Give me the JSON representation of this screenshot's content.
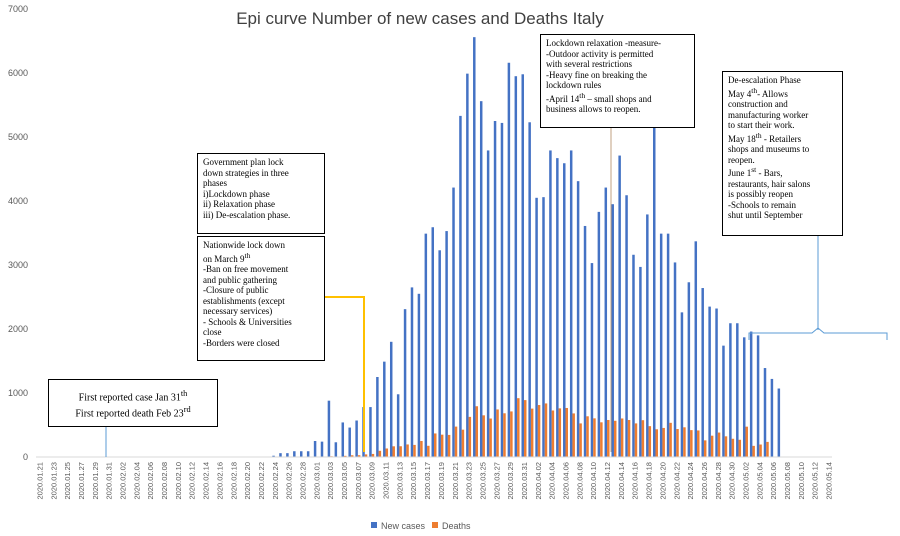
{
  "chart_data": {
    "type": "bar",
    "title": "Epi curve Number of new cases and Deaths Italy",
    "ylim": [
      0,
      7000
    ],
    "y_ticks": [
      "0",
      "1000",
      "2000",
      "3000",
      "4000",
      "5000",
      "6000",
      "7000"
    ],
    "start_date": "2020-01-21",
    "num_days": 115,
    "tick_labels": [
      "2020.01.21",
      "2020.01.23",
      "2020.01.25",
      "2020.01.27",
      "2020.01.29",
      "2020.01.31",
      "2020.02.02",
      "2020.02.04",
      "2020.02.06",
      "2020.02.08",
      "2020.02.10",
      "2020.02.12",
      "2020.02.14",
      "2020.02.16",
      "2020.02.18",
      "2020.02.20",
      "2020.02.22",
      "2020.02.24",
      "2020.02.26",
      "2020.02.28",
      "2020.03.01",
      "2020.03.03",
      "2020.03.05",
      "2020.03.07",
      "2020.03.09",
      "2020.03.11",
      "2020.03.13",
      "2020.03.15",
      "2020.03.17",
      "2020.03.19",
      "2020.03.21",
      "2020.03.23",
      "2020.03.25",
      "2020.03.27",
      "2020.03.29",
      "2020.03.31",
      "2020.04.02",
      "2020.04.04",
      "2020.04.06",
      "2020.04.08",
      "2020.04.10",
      "2020.04.12",
      "2020.04.14",
      "2020.04.16",
      "2020.04.18",
      "2020.04.20",
      "2020.04.22",
      "2020.04.24",
      "2020.04.26",
      "2020.04.28",
      "2020.04.30",
      "2020.05.02",
      "2020.05.04",
      "2020.05.06",
      "2020.05.08",
      "2020.05.10",
      "2020.05.12",
      "2020.05.14"
    ],
    "series": [
      {
        "name": "New cases",
        "color": "#4472C4",
        "values": [
          0,
          0,
          0,
          0,
          0,
          0,
          0,
          0,
          0,
          0,
          0,
          0,
          0,
          0,
          0,
          0,
          0,
          0,
          0,
          0,
          0,
          0,
          0,
          0,
          0,
          0,
          0,
          0,
          0,
          0,
          0,
          0,
          0,
          0,
          20,
          60,
          60,
          90,
          90,
          90,
          250,
          240,
          880,
          230,
          540,
          460,
          570,
          780,
          780,
          1250,
          1490,
          1800,
          980,
          2310,
          2650,
          2550,
          3490,
          3590,
          3230,
          3530,
          4210,
          5330,
          5990,
          6560,
          5560,
          4790,
          5250,
          5220,
          6160,
          5950,
          5980,
          5230,
          4050,
          4060,
          4790,
          4670,
          4590,
          4790,
          4310,
          3610,
          3030,
          3830,
          4210,
          3950,
          4710,
          4090,
          3160,
          2970,
          3790,
          5220,
          3490,
          3490,
          3040,
          2260,
          2730,
          3370,
          2640,
          2350,
          2320,
          1740,
          2090,
          2090,
          1870,
          1960,
          1900,
          1390,
          1220,
          1070,
          0,
          0,
          0,
          0,
          0,
          0,
          0,
          0
        ]
      },
      {
        "name": "Deaths",
        "color": "#ED7D31",
        "values": [
          0,
          0,
          0,
          0,
          0,
          0,
          0,
          0,
          0,
          0,
          0,
          0,
          0,
          0,
          0,
          0,
          0,
          0,
          0,
          0,
          0,
          0,
          0,
          0,
          0,
          0,
          0,
          0,
          0,
          0,
          0,
          0,
          0,
          0,
          0,
          2,
          3,
          4,
          3,
          4,
          8,
          8,
          12,
          6,
          18,
          27,
          28,
          41,
          48,
          97,
          133,
          167,
          168,
          196,
          189,
          250,
          175,
          368,
          349,
          345,
          475,
          427,
          627,
          793,
          651,
          601,
          743,
          683,
          712,
          919,
          889,
          756,
          812,
          837,
          727,
          760,
          766,
          681,
          525,
          636,
          604,
          542,
          578,
          566,
          602,
          578,
          525,
          575,
          482,
          433,
          454,
          534,
          437,
          464,
          420,
          415,
          260,
          333,
          382,
          323,
          285,
          269,
          474,
          174,
          195,
          236,
          0,
          0,
          0,
          0,
          0,
          0,
          0,
          0,
          0
        ]
      }
    ],
    "annotations": {
      "first_case": {
        "line1_pre": "First reported case Jan 31",
        "line1_sup": "th",
        "line2_pre": "First reported death Feb 23",
        "line2_sup": "rd"
      },
      "government_plan": {
        "lines": [
          "Government plan lock",
          "down strategies in three",
          "phases",
          "i)Lockdown phase",
          "ii) Relaxation phase",
          "iii) De-escalation phase."
        ]
      },
      "nationwide_lockdown": {
        "title_line1": "Nationwide lock down",
        "title_line2_pre": "on March 9",
        "title_line2_sup": "th",
        "lines": [
          "-Ban on free movement",
          "and public gathering",
          "-Closure of public",
          "establishments (except",
          "necessary services)",
          "- Schools & Universities",
          "close",
          "-Borders were closed"
        ]
      },
      "lockdown_relaxation": {
        "lines": [
          "Lockdown relaxation -measure-",
          "-Outdoor activity is permitted",
          "with several restrictions",
          "-Heavy fine on breaking the",
          "lockdown rules"
        ],
        "april_pre": "-April 14",
        "april_sup": "th",
        "april_post": " – small shops and",
        "last_line": "business allows to reopen."
      },
      "de_escalation": {
        "heading": "De-escalation Phase",
        "may4_pre": "May 4",
        "may4_sup": "th",
        "may4_post": "- Allows",
        "lines_a": [
          "construction and",
          "manufacturing worker",
          "to start their work."
        ],
        "may18_pre": "May 18",
        "may18_sup": "th",
        "may18_post": " - Retailers",
        "lines_b": [
          "shops and museums to",
          "reopen."
        ],
        "june1_pre": "June 1",
        "june1_sup": "st",
        "june1_post": " - Bars,",
        "lines_c": [
          "restaurants, hair salons",
          "is possibly reopen",
          "-Schools to remain",
          "shut until September"
        ]
      }
    }
  }
}
